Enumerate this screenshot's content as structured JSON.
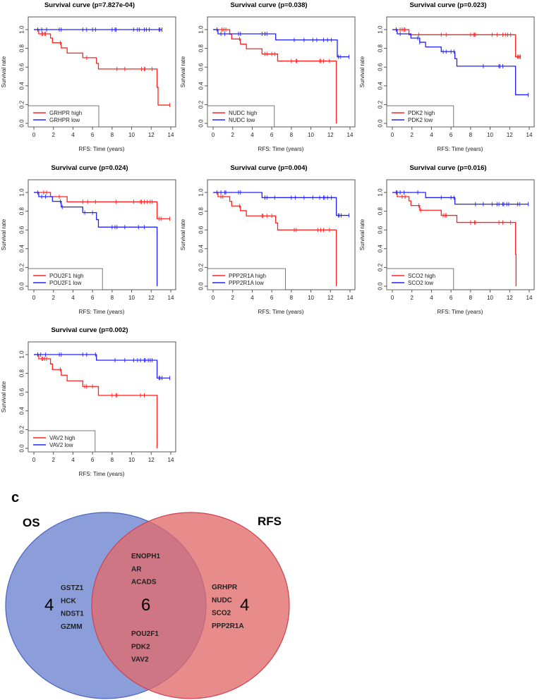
{
  "colors": {
    "high": "#ff2020",
    "low": "#2020ff",
    "os_fill": "#6f86d0",
    "rfs_fill": "#e06a6a"
  },
  "xlabel": "RFS: Time (years)",
  "ylabel": "Survival rate",
  "chart_data": [
    {
      "type": "line",
      "title": "Survival curve (p=7.827e-04)",
      "xlim": [
        0,
        14
      ],
      "ylim": [
        0,
        1
      ],
      "xticks": [
        "0",
        "2",
        "4",
        "6",
        "8",
        "10",
        "12",
        "14"
      ],
      "yticks": [
        "0.0",
        "0.2",
        "0.4",
        "0.6",
        "0.8",
        "1.0"
      ],
      "legend_position": "bottom-left",
      "series": [
        {
          "name": "GRHPR high",
          "group": "high",
          "steps": [
            [
              0,
              1
            ],
            [
              0.5,
              0.955
            ],
            [
              1.7,
              0.91
            ],
            [
              1.9,
              0.86
            ],
            [
              2.8,
              0.805
            ],
            [
              3.4,
              0.75
            ],
            [
              5.0,
              0.7
            ],
            [
              6.4,
              0.64
            ],
            [
              6.6,
              0.58
            ],
            [
              12.6,
              0.385
            ],
            [
              12.7,
              0.195
            ]
          ],
          "end": 13.9,
          "censored": [
            0.8,
            0.9,
            1.1,
            1.2,
            2.7,
            5.4,
            8.5,
            9.3,
            11.0,
            11.3,
            11.35,
            12.1,
            13.9
          ]
        },
        {
          "name": "GRHPR low",
          "group": "low",
          "steps": [
            [
              0,
              1
            ]
          ],
          "end": 13.1,
          "censored": [
            0.4,
            0.8,
            1.3,
            2.6,
            2.8,
            5,
            5.4,
            6,
            6.3,
            8,
            8.3,
            8.4,
            10.2,
            10.6,
            10.8,
            11.3,
            11.5,
            11.8,
            12.8,
            12.9,
            13.1
          ]
        }
      ]
    },
    {
      "type": "line",
      "title": "Survival curve (p=0.038)",
      "xlim": [
        0,
        14
      ],
      "ylim": [
        0,
        1
      ],
      "xticks": [
        "0",
        "2",
        "4",
        "6",
        "8",
        "10",
        "12",
        "14"
      ],
      "yticks": [
        "0.0",
        "0.2",
        "0.4",
        "0.6",
        "0.8",
        "1.0"
      ],
      "legend_position": "bottom-left",
      "series": [
        {
          "name": "NUDC high",
          "group": "high",
          "steps": [
            [
              0,
              1
            ],
            [
              1.7,
              0.95
            ],
            [
              1.9,
              0.9
            ],
            [
              2.8,
              0.845
            ],
            [
              3.4,
              0.795
            ],
            [
              5.0,
              0.74
            ],
            [
              6.6,
              0.665
            ],
            [
              12.6,
              0
            ]
          ],
          "end": 12.6,
          "censored": [
            0.9,
            1.1,
            1.3,
            2.7,
            5.3,
            5.5,
            6.0,
            6.3,
            8.0,
            8.5,
            8.55,
            10.9,
            11.0,
            11.3,
            11.9
          ]
        },
        {
          "name": "NUDC low",
          "group": "low",
          "steps": [
            [
              0,
              1
            ],
            [
              0.5,
              0.955
            ],
            [
              6.4,
              0.89
            ],
            [
              12.7,
              0.71
            ]
          ],
          "end": 13.9,
          "censored": [
            0.4,
            0.8,
            1.2,
            2.6,
            2.8,
            5,
            5.3,
            5.5,
            8.3,
            9.3,
            10.2,
            10.6,
            11.3,
            11.7,
            12.1,
            12.8,
            13.0,
            13.9
          ]
        }
      ]
    },
    {
      "type": "line",
      "title": "Survival curve (p=0.023)",
      "xlim": [
        0,
        14
      ],
      "ylim": [
        0,
        1
      ],
      "xticks": [
        "0",
        "2",
        "4",
        "6",
        "8",
        "10",
        "12",
        "14"
      ],
      "yticks": [
        "0.0",
        "0.2",
        "0.4",
        "0.6",
        "0.8",
        "1.0"
      ],
      "legend_position": "bottom-left",
      "series": [
        {
          "name": "PDK2 high",
          "group": "high",
          "steps": [
            [
              0,
              1
            ],
            [
              1.7,
              0.945
            ],
            [
              12.6,
              0.71
            ]
          ],
          "end": 13.1,
          "censored": [
            0.4,
            0.8,
            1.0,
            1.2,
            1.3,
            2.7,
            5,
            5.5,
            8,
            8.3,
            8.4,
            8.5,
            10.2,
            10.7,
            11.3,
            11.6,
            11.8,
            12.1,
            12.8,
            12.9,
            13.0,
            13.1
          ]
        },
        {
          "name": "PDK2 low",
          "group": "low",
          "steps": [
            [
              0,
              1
            ],
            [
              0.5,
              0.955
            ],
            [
              1.9,
              0.91
            ],
            [
              2.8,
              0.865
            ],
            [
              3.4,
              0.815
            ],
            [
              5.0,
              0.765
            ],
            [
              6.4,
              0.69
            ],
            [
              6.6,
              0.61
            ],
            [
              12.6,
              0.305
            ]
          ],
          "end": 13.9,
          "censored": [
            0.4,
            0.8,
            2.6,
            2.8,
            5.2,
            5.5,
            6.0,
            6.3,
            9.3,
            10.9,
            11.0,
            11.3,
            13.9
          ]
        }
      ]
    },
    {
      "type": "line",
      "title": "Survival curve (p=0.024)",
      "xlim": [
        0,
        14
      ],
      "ylim": [
        0,
        1
      ],
      "xticks": [
        "0",
        "2",
        "4",
        "6",
        "8",
        "10",
        "12",
        "14"
      ],
      "yticks": [
        "0.0",
        "0.2",
        "0.4",
        "0.6",
        "0.8",
        "1.0"
      ],
      "legend_position": "bottom-left",
      "series": [
        {
          "name": "POU2F1 high",
          "group": "high",
          "steps": [
            [
              0,
              1
            ],
            [
              1.7,
              0.955
            ],
            [
              3.4,
              0.9
            ],
            [
              12.6,
              0.72
            ]
          ],
          "end": 13.9,
          "censored": [
            1.0,
            1.3,
            2.6,
            5,
            5.5,
            6.3,
            8.4,
            10.2,
            10.9,
            11.0,
            11.3,
            11.6,
            11.9,
            12.1,
            12.8,
            13.0,
            13.9
          ]
        },
        {
          "name": "POU2F1 low",
          "group": "low",
          "steps": [
            [
              0,
              1
            ],
            [
              0.5,
              0.955
            ],
            [
              1.9,
              0.905
            ],
            [
              2.8,
              0.845
            ],
            [
              5.0,
              0.785
            ],
            [
              6.4,
              0.71
            ],
            [
              6.6,
              0.63
            ],
            [
              12.6,
              0
            ]
          ],
          "end": 12.6,
          "censored": [
            0.4,
            0.8,
            1.2,
            2.7,
            2.9,
            5.2,
            6,
            8,
            8.3,
            8.5,
            9.3,
            10.7,
            11.3
          ]
        }
      ]
    },
    {
      "type": "line",
      "title": "Survival curve (p=0.004)",
      "xlim": [
        0,
        14
      ],
      "ylim": [
        0,
        1
      ],
      "xticks": [
        "0",
        "2",
        "4",
        "6",
        "8",
        "10",
        "12",
        "14"
      ],
      "yticks": [
        "0.0",
        "0.2",
        "0.4",
        "0.6",
        "0.8",
        "1.0"
      ],
      "legend_position": "bottom-left",
      "series": [
        {
          "name": "PPP2R1A high",
          "group": "high",
          "steps": [
            [
              0,
              1
            ],
            [
              0.5,
              0.955
            ],
            [
              1.7,
              0.905
            ],
            [
              1.9,
              0.855
            ],
            [
              2.8,
              0.805
            ],
            [
              3.4,
              0.75
            ],
            [
              6.4,
              0.675
            ],
            [
              6.6,
              0.6
            ],
            [
              12.6,
              0
            ]
          ],
          "end": 12.6,
          "censored": [
            0.8,
            1.0,
            2.7,
            5,
            5.1,
            5.5,
            6,
            8.3,
            8.5,
            10.7,
            11.0,
            11.3,
            11.9
          ]
        },
        {
          "name": "PPP2R1A low",
          "group": "low",
          "steps": [
            [
              0,
              1
            ],
            [
              5.0,
              0.945
            ],
            [
              12.6,
              0.755
            ]
          ],
          "end": 13.9,
          "censored": [
            0.4,
            0.8,
            1.2,
            1.3,
            2.6,
            2.8,
            5.3,
            5.5,
            6.3,
            8,
            8.4,
            9.3,
            10.2,
            10.9,
            11.3,
            11.4,
            11.7,
            12.1,
            12.8,
            12.9,
            13.1,
            13.9
          ]
        }
      ]
    },
    {
      "type": "line",
      "title": "Survival curve (p=0.016)",
      "xlim": [
        0,
        14
      ],
      "ylim": [
        0,
        1
      ],
      "xticks": [
        "0",
        "2",
        "4",
        "6",
        "8",
        "10",
        "12",
        "14"
      ],
      "yticks": [
        "0.0",
        "0.2",
        "0.4",
        "0.6",
        "0.8",
        "1.0"
      ],
      "legend_position": "bottom-left",
      "series": [
        {
          "name": "SCO2 high",
          "group": "high",
          "steps": [
            [
              0,
              1
            ],
            [
              0.5,
              0.955
            ],
            [
              1.7,
              0.91
            ],
            [
              1.9,
              0.86
            ],
            [
              2.8,
              0.81
            ],
            [
              5.0,
              0.755
            ],
            [
              6.6,
              0.68
            ],
            [
              12.6,
              0.34
            ],
            [
              12.65,
              0
            ]
          ],
          "end": 12.65,
          "censored": [
            1.0,
            1.3,
            2.7,
            2.9,
            5.2,
            5.4,
            5.5,
            8,
            8.4,
            8.5,
            10.9,
            11.3,
            12.1
          ]
        },
        {
          "name": "SCO2 low",
          "group": "low",
          "steps": [
            [
              0,
              1
            ],
            [
              3.4,
              0.945
            ],
            [
              6.4,
              0.875
            ]
          ],
          "end": 13.9,
          "censored": [
            0.4,
            0.5,
            0.8,
            1.2,
            2.6,
            5,
            6,
            6.3,
            8.5,
            9.3,
            10.2,
            10.7,
            10.9,
            11.3,
            11.4,
            11.7,
            11.9,
            12.8,
            13.0,
            13.9
          ]
        }
      ]
    },
    {
      "type": "line",
      "title": "Survival curve (p=0.002)",
      "xlim": [
        0,
        14
      ],
      "ylim": [
        0,
        1
      ],
      "xticks": [
        "0",
        "2",
        "4",
        "6",
        "8",
        "10",
        "12",
        "14"
      ],
      "yticks": [
        "0.0",
        "0.2",
        "0.4",
        "0.6",
        "0.8",
        "1.0"
      ],
      "legend_position": "bottom-left",
      "series": [
        {
          "name": "VAV2 high",
          "group": "high",
          "steps": [
            [
              0,
              1
            ],
            [
              0.5,
              0.955
            ],
            [
              1.7,
              0.9
            ],
            [
              1.9,
              0.84
            ],
            [
              2.8,
              0.78
            ],
            [
              3.4,
              0.72
            ],
            [
              5.0,
              0.66
            ],
            [
              6.6,
              0.565
            ],
            [
              12.6,
              0
            ]
          ],
          "end": 12.6,
          "censored": [
            0.4,
            0.8,
            0.9,
            1.1,
            1.3,
            2.7,
            5.2,
            5.4,
            6,
            8,
            8.4,
            8.5,
            10.9,
            11.3
          ]
        },
        {
          "name": "VAV2 low",
          "group": "low",
          "steps": [
            [
              0,
              1
            ],
            [
              6.4,
              0.94
            ],
            [
              12.6,
              0.75
            ]
          ],
          "end": 13.9,
          "censored": [
            0.4,
            0.7,
            1.2,
            2.6,
            2.8,
            5,
            5.4,
            6.3,
            8.3,
            9.3,
            10.2,
            10.6,
            10.9,
            11.3,
            11.4,
            11.7,
            11.9,
            12.1,
            12.8,
            12.9,
            13.1,
            13.9
          ]
        }
      ]
    }
  ],
  "venn": {
    "panel_label": "c",
    "left_set": {
      "label": "OS",
      "count": "4",
      "genes": [
        "GSTZ1",
        "HCK",
        "NDST1",
        "GZMM"
      ]
    },
    "right_set": {
      "label": "RFS",
      "count": "4",
      "genes": [
        "GRHPR",
        "NUDC",
        "SCO2",
        "PPP2R1A"
      ]
    },
    "intersection": {
      "count": "6",
      "genes_top": [
        "ENOPH1",
        "AR",
        "ACADS"
      ],
      "genes_bottom": [
        "POU2F1",
        "PDK2",
        "VAV2"
      ]
    }
  }
}
